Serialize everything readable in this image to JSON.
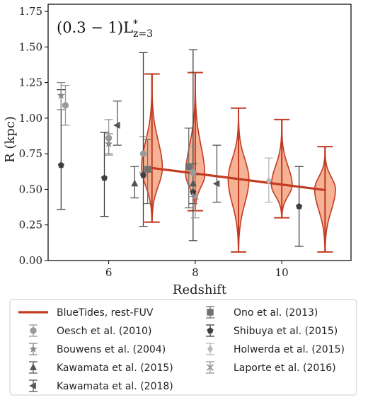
{
  "chart_data": {
    "type": "scatter",
    "panel_label": {
      "main": "(0.3 − 1)L",
      "sup": "*",
      "sub": "z=3"
    },
    "xlabel": "Redshift",
    "ylabel": "R (kpc)",
    "xlim": [
      4.6,
      11.6
    ],
    "ylim": [
      0.0,
      1.8
    ],
    "xticks": [
      {
        "v": 6,
        "label": "6"
      },
      {
        "v": 8,
        "label": "8"
      },
      {
        "v": 10,
        "label": "10"
      }
    ],
    "yticks": [
      {
        "v": 0.0,
        "label": "0.00"
      },
      {
        "v": 0.25,
        "label": "0.25"
      },
      {
        "v": 0.5,
        "label": "0.50"
      },
      {
        "v": 0.75,
        "label": "0.75"
      },
      {
        "v": 1.0,
        "label": "1.00"
      },
      {
        "v": 1.25,
        "label": "1.25"
      },
      {
        "v": 1.5,
        "label": "1.50"
      },
      {
        "v": 1.75,
        "label": "1.75"
      }
    ],
    "grid": false,
    "legend_placement": "below",
    "colors": {
      "bluetides_line": "#c23b22",
      "violin_fill": "#f4a582",
      "obs_dark": "#3f3f3f",
      "obs_mid": "#707070",
      "obs_light": "#9a9a9a",
      "obs_pale": "#b8b8b8"
    },
    "bluetides_line": {
      "name": "BlueTides, rest-FUV",
      "x": [
        7,
        11
      ],
      "y": [
        0.65,
        0.495
      ]
    },
    "violins": [
      {
        "z": 7,
        "min": 0.27,
        "max": 1.31,
        "median": 0.65,
        "width": 0.24
      },
      {
        "z": 8,
        "min": 0.35,
        "max": 1.32,
        "median": 0.6,
        "width": 0.22
      },
      {
        "z": 9,
        "min": 0.06,
        "max": 1.07,
        "median": 0.57,
        "width": 0.24
      },
      {
        "z": 10,
        "min": 0.3,
        "max": 0.99,
        "median": 0.53,
        "width": 0.24
      },
      {
        "z": 11,
        "min": 0.06,
        "max": 0.8,
        "median": 0.5,
        "width": 0.24
      }
    ],
    "series": [
      {
        "name": "Ono et al. (2013)",
        "marker": "square",
        "color": "#707070",
        "points": [
          {
            "x": 6.9,
            "y": 0.64,
            "lo": 0.4,
            "hi": 0.85
          },
          {
            "x": 7.85,
            "y": 0.66,
            "lo": 0.37,
            "hi": 0.93
          }
        ]
      },
      {
        "name": "Oesch et al. (2010)",
        "marker": "circle",
        "color": "#9a9a9a",
        "points": [
          {
            "x": 5.0,
            "y": 1.09,
            "lo": 0.95,
            "hi": 1.23
          },
          {
            "x": 6.0,
            "y": 0.86,
            "lo": 0.74,
            "hi": 0.99
          },
          {
            "x": 6.8,
            "y": 0.75,
            "lo": 0.62,
            "hi": 0.87
          },
          {
            "x": 7.95,
            "y": 0.62,
            "lo": 0.45,
            "hi": 0.8
          }
        ]
      },
      {
        "name": "Shibuya et al. (2015)",
        "marker": "pentagon",
        "color": "#3f3f3f",
        "points": [
          {
            "x": 4.9,
            "y": 0.67,
            "lo": 0.36,
            "hi": 1.2
          },
          {
            "x": 5.9,
            "y": 0.58,
            "lo": 0.31,
            "hi": 0.9
          },
          {
            "x": 6.8,
            "y": 0.6,
            "lo": 0.24,
            "hi": 1.46
          },
          {
            "x": 7.95,
            "y": 0.48,
            "lo": 0.14,
            "hi": 1.48
          },
          {
            "x": 10.4,
            "y": 0.38,
            "lo": 0.1,
            "hi": 0.66
          }
        ]
      },
      {
        "name": "Bouwens et al. (2004)",
        "marker": "star",
        "color": "#8a8a8a",
        "points": [
          {
            "x": 4.9,
            "y": 1.16,
            "lo": 1.06,
            "hi": 1.25
          },
          {
            "x": 6.0,
            "y": 0.82,
            "lo": 0.75,
            "hi": 0.89
          }
        ]
      },
      {
        "name": "Holwerda et al. (2015)",
        "marker": "diamond",
        "color": "#b8b8b8",
        "points": [
          {
            "x": 9.7,
            "y": 0.56,
            "lo": 0.41,
            "hi": 0.72
          }
        ]
      },
      {
        "name": "Kawamata et al. (2015)",
        "marker": "triangle-up",
        "color": "#555555",
        "points": [
          {
            "x": 6.6,
            "y": 0.54,
            "lo": 0.44,
            "hi": 0.66
          },
          {
            "x": 7.95,
            "y": 0.54,
            "lo": 0.4,
            "hi": 0.68
          }
        ]
      },
      {
        "name": "Laporte et al. (2016)",
        "marker": "x",
        "color": "#9a9a9a",
        "points": [
          {
            "x": 8.0,
            "y": 0.45,
            "lo": 0.3,
            "hi": 0.6
          }
        ]
      },
      {
        "name": "Kawamata et al. (2018)",
        "marker": "triangle-left",
        "color": "#555555",
        "points": [
          {
            "x": 6.2,
            "y": 0.95,
            "lo": 0.81,
            "hi": 1.12
          },
          {
            "x": 8.5,
            "y": 0.54,
            "lo": 0.41,
            "hi": 0.81
          }
        ]
      }
    ],
    "legend": [
      {
        "label": "BlueTides, rest-FUV",
        "kind": "line",
        "color": "#c23b22"
      },
      {
        "label": "Ono et al. (2013)",
        "kind": "marker",
        "marker": "square",
        "color": "#707070"
      },
      {
        "label": "Oesch et al. (2010)",
        "kind": "marker",
        "marker": "circle",
        "color": "#9a9a9a"
      },
      {
        "label": "Shibuya et al. (2015)",
        "kind": "marker",
        "marker": "pentagon",
        "color": "#3f3f3f"
      },
      {
        "label": "Bouwens et al. (2004)",
        "kind": "marker",
        "marker": "star",
        "color": "#8a8a8a"
      },
      {
        "label": "Holwerda et al. (2015)",
        "kind": "marker",
        "marker": "diamond",
        "color": "#b8b8b8"
      },
      {
        "label": "Kawamata et al. (2015)",
        "kind": "marker",
        "marker": "triangle-up",
        "color": "#555555"
      },
      {
        "label": "Laporte et al. (2016)",
        "kind": "marker",
        "marker": "x",
        "color": "#9a9a9a"
      },
      {
        "label": "Kawamata et al. (2018)",
        "kind": "marker",
        "marker": "triangle-left",
        "color": "#555555"
      }
    ]
  }
}
